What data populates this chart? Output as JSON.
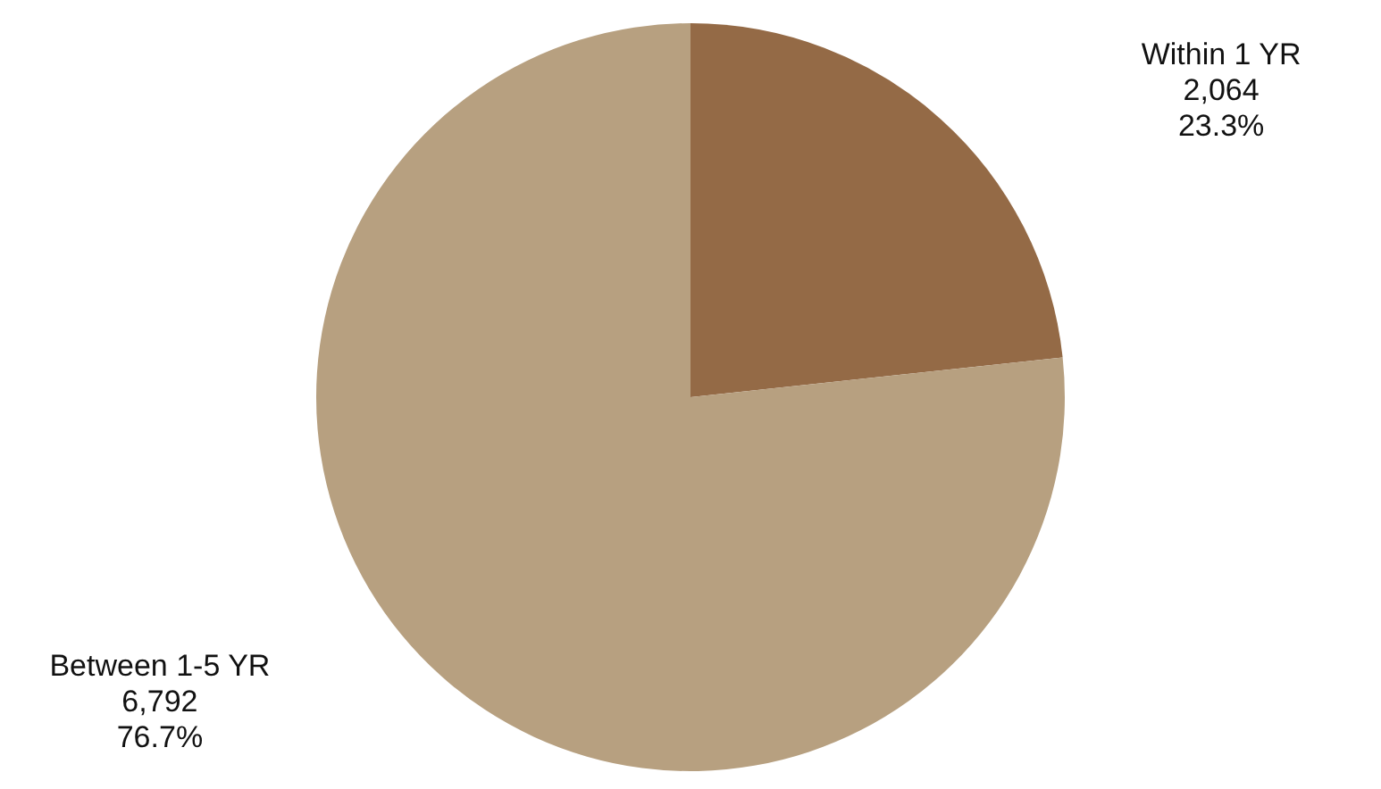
{
  "chart_data": {
    "type": "pie",
    "categories": [
      "Within 1 YR",
      "Between 1-5 YR"
    ],
    "values": [
      2064,
      6792
    ],
    "colors": [
      "#946a46",
      "#b7a080"
    ],
    "value_labels": [
      "2,064\n23.3%",
      "6,792\n76.7%"
    ],
    "legend": false
  }
}
